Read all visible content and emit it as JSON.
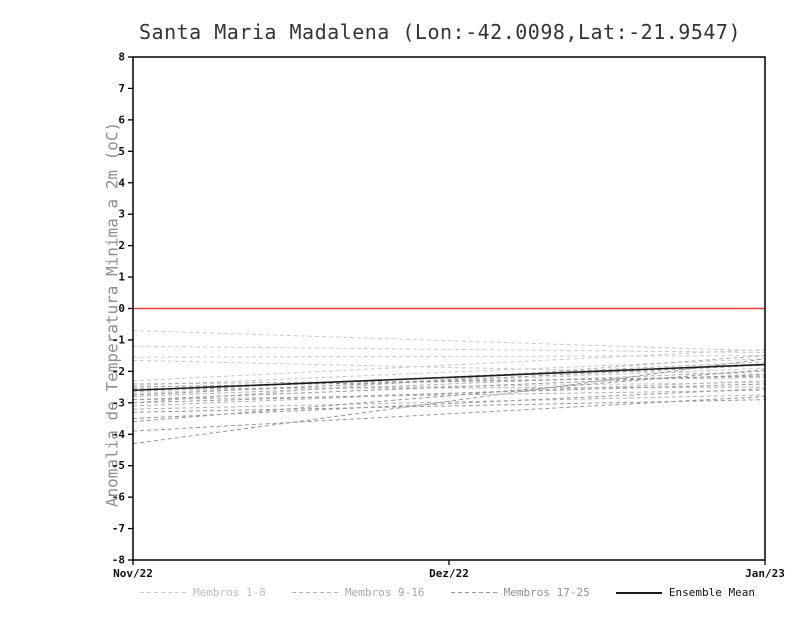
{
  "chart_data": {
    "type": "line",
    "title": "Santa Maria Madalena (Lon:-42.0098,Lat:-21.9547)",
    "ylabel": "Anomalia de Temperatura Minima a 2m (oC)",
    "xlabel": "",
    "ylim": [
      -8,
      8
    ],
    "ytick_step": 1,
    "x_tick_labels": [
      "Nov/22",
      "Dez/22",
      "Jan/23"
    ],
    "grid": false,
    "legend_position": "bottom",
    "zero_line": {
      "value": 0,
      "color": "#ef3b30"
    },
    "series_groups": [
      {
        "name": "Membros 1-8",
        "color": "#c9c9c9",
        "style": "dashed",
        "members": [
          {
            "x": [
              "Nov/22",
              "Jan/23"
            ],
            "values": [
              -0.7,
              -1.35
            ]
          },
          {
            "x": [
              "Nov/22",
              "Jan/23"
            ],
            "values": [
              -1.2,
              -1.4
            ]
          },
          {
            "x": [
              "Nov/22",
              "Jan/23"
            ],
            "values": [
              -1.55,
              -1.5
            ]
          },
          {
            "x": [
              "Nov/22",
              "Jan/23"
            ],
            "values": [
              -1.65,
              -2.1
            ]
          },
          {
            "x": [
              "Nov/22",
              "Jan/23"
            ],
            "values": [
              -2.3,
              -1.3
            ]
          },
          {
            "x": [
              "Nov/22",
              "Jan/23"
            ],
            "values": [
              -2.45,
              -1.6
            ]
          },
          {
            "x": [
              "Nov/22",
              "Jan/23"
            ],
            "values": [
              -2.6,
              -2.35
            ]
          },
          {
            "x": [
              "Nov/22",
              "Jan/23"
            ],
            "values": [
              -2.7,
              -1.9
            ]
          }
        ]
      },
      {
        "name": "Membros 9-16",
        "color": "#b2b2b2",
        "style": "dashed",
        "members": [
          {
            "x": [
              "Nov/22",
              "Jan/23"
            ],
            "values": [
              -2.4,
              -2.2
            ]
          },
          {
            "x": [
              "Nov/22",
              "Jan/23"
            ],
            "values": [
              -2.55,
              -2.5
            ]
          },
          {
            "x": [
              "Nov/22",
              "Jan/23"
            ],
            "values": [
              -2.65,
              -1.7
            ]
          },
          {
            "x": [
              "Nov/22",
              "Jan/23"
            ],
            "values": [
              -2.8,
              -2.0
            ]
          },
          {
            "x": [
              "Nov/22",
              "Jan/23"
            ],
            "values": [
              -2.9,
              -2.6
            ]
          },
          {
            "x": [
              "Nov/22",
              "Jan/23"
            ],
            "values": [
              -3.0,
              -1.5
            ]
          },
          {
            "x": [
              "Nov/22",
              "Jan/23"
            ],
            "values": [
              -3.1,
              -2.3
            ]
          },
          {
            "x": [
              "Nov/22",
              "Jan/23"
            ],
            "values": [
              -3.2,
              -2.75
            ]
          }
        ]
      },
      {
        "name": "Membros 17-25",
        "color": "#979797",
        "style": "dashed",
        "members": [
          {
            "x": [
              "Nov/22",
              "Jan/23"
            ],
            "values": [
              -2.5,
              -2.15
            ]
          },
          {
            "x": [
              "Nov/22",
              "Jan/23"
            ],
            "values": [
              -2.75,
              -1.8
            ]
          },
          {
            "x": [
              "Nov/22",
              "Jan/23"
            ],
            "values": [
              -2.9,
              -2.1
            ]
          },
          {
            "x": [
              "Nov/22",
              "Jan/23"
            ],
            "values": [
              -3.0,
              -2.4
            ]
          },
          {
            "x": [
              "Nov/22",
              "Jan/23"
            ],
            "values": [
              -3.3,
              -2.9
            ]
          },
          {
            "x": [
              "Nov/22",
              "Jan/23"
            ],
            "values": [
              -3.5,
              -2.55
            ]
          },
          {
            "x": [
              "Nov/22",
              "Jan/23"
            ],
            "values": [
              -3.6,
              -1.95
            ]
          },
          {
            "x": [
              "Nov/22",
              "Jan/23"
            ],
            "values": [
              -3.9,
              -2.8
            ]
          },
          {
            "x": [
              "Nov/22",
              "Jan/23"
            ],
            "values": [
              -4.3,
              -1.6
            ]
          }
        ]
      }
    ],
    "ensemble_mean": {
      "name": "Ensemble Mean",
      "color": "#1a1a1a",
      "style": "solid",
      "x": [
        "Nov/22",
        "Jan/23"
      ],
      "values": [
        -2.6,
        -1.78
      ]
    },
    "legend": [
      {
        "label": "Membros 1-8",
        "color": "#c9c9c9",
        "label_color": "#bdbdbd",
        "style": "dashed"
      },
      {
        "label": "Membros 9-16",
        "color": "#b2b2b2",
        "label_color": "#a8a8a8",
        "style": "dashed"
      },
      {
        "label": "Membros 17-25",
        "color": "#979797",
        "label_color": "#8f8f8f",
        "style": "dashed"
      },
      {
        "label": "Ensemble Mean",
        "color": "#1a1a1a",
        "label_color": "#111111",
        "style": "solid"
      }
    ]
  }
}
